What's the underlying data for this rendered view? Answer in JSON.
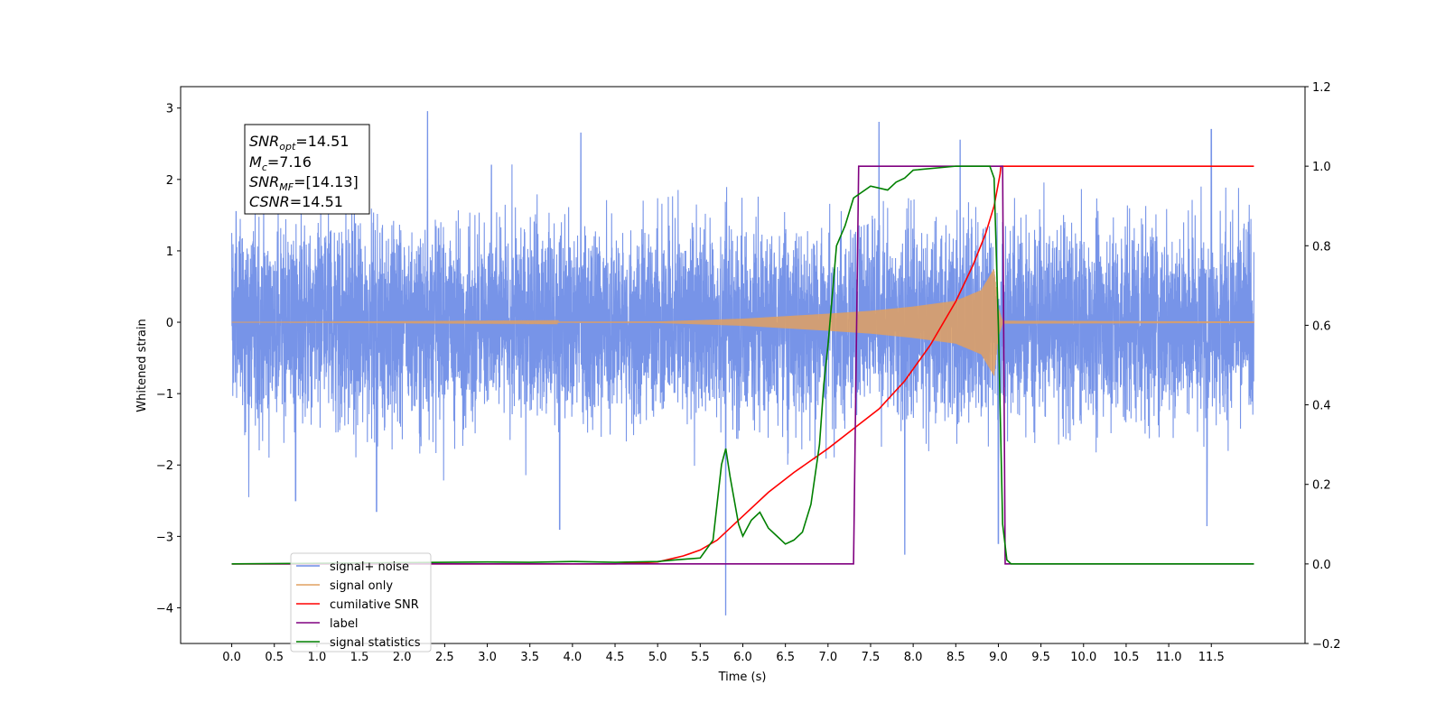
{
  "chart_data": {
    "type": "line",
    "title": "",
    "xlabel": "Time (s)",
    "ylabel": "Whitened strain",
    "xlim": [
      -0.6,
      12.6
    ],
    "ylim": [
      -4.5,
      3.3
    ],
    "y2lim": [
      -0.2,
      1.2
    ],
    "x_ticks": [
      "0.0",
      "0.5",
      "1.0",
      "1.5",
      "2.0",
      "2.5",
      "3.0",
      "3.5",
      "4.0",
      "4.5",
      "5.0",
      "5.5",
      "6.0",
      "6.5",
      "7.0",
      "7.5",
      "8.0",
      "8.5",
      "9.0",
      "9.5",
      "10.0",
      "10.5",
      "11.0",
      "11.5"
    ],
    "y_ticks": [
      "3",
      "2",
      "1",
      "0",
      "−1",
      "−2",
      "−3",
      "−4"
    ],
    "y2_ticks": [
      "1.2",
      "1.0",
      "0.8",
      "0.6",
      "0.4",
      "0.2",
      "0.0",
      "−0.2"
    ],
    "grid": false,
    "legend_position": "lower-left",
    "stats_box": {
      "line1_base": "SNR",
      "line1_sub": "opt",
      "line1_value": "=14.51",
      "line2_base": "M",
      "line2_sub": "c",
      "line2_value": "=7.16",
      "line3_base": "SNR",
      "line3_sub": "MF",
      "line3_value": "=[14.13]",
      "line4_base": "CSNR",
      "line4_value": "=14.51"
    },
    "series": [
      {
        "name": "signal+ noise",
        "color": "#6b8be6",
        "axis": "left",
        "kind": "noise_envelope",
        "typical_amplitude": 1.2,
        "peaks": [
          [
            0.05,
            1.55
          ],
          [
            0.2,
            -2.45
          ],
          [
            0.75,
            -2.5
          ],
          [
            1.7,
            -2.65
          ],
          [
            2.3,
            2.95
          ],
          [
            3.05,
            2.2
          ],
          [
            3.85,
            -2.9
          ],
          [
            4.1,
            2.65
          ],
          [
            5.8,
            -4.1
          ],
          [
            7.6,
            2.8
          ],
          [
            7.9,
            -3.25
          ],
          [
            8.55,
            2.55
          ],
          [
            9.0,
            -3.1
          ],
          [
            11.5,
            2.7
          ],
          [
            11.45,
            -2.85
          ]
        ]
      },
      {
        "name": "signal only",
        "color": "#e0a060",
        "axis": "left",
        "kind": "chirp_envelope",
        "envelope": [
          [
            0,
            0
          ],
          [
            5.0,
            0.01
          ],
          [
            6.0,
            0.05
          ],
          [
            7.0,
            0.12
          ],
          [
            7.5,
            0.16
          ],
          [
            8.0,
            0.22
          ],
          [
            8.5,
            0.3
          ],
          [
            8.8,
            0.45
          ],
          [
            8.95,
            0.75
          ],
          [
            9.0,
            0.2
          ],
          [
            9.05,
            0.02
          ],
          [
            12.0,
            0.01
          ]
        ]
      },
      {
        "name": "cumilative SNR",
        "color": "#ff0000",
        "axis": "right",
        "x": [
          0,
          4.5,
          5.0,
          5.3,
          5.5,
          5.7,
          6.0,
          6.3,
          6.6,
          7.0,
          7.3,
          7.6,
          7.9,
          8.2,
          8.5,
          8.7,
          8.85,
          8.95,
          9.02,
          9.03,
          12.0
        ],
        "y": [
          0.0,
          0.0,
          0.005,
          0.02,
          0.035,
          0.06,
          0.12,
          0.18,
          0.23,
          0.29,
          0.34,
          0.39,
          0.46,
          0.55,
          0.66,
          0.75,
          0.83,
          0.9,
          0.98,
          1.0,
          1.0
        ]
      },
      {
        "name": "label",
        "color": "#800080",
        "axis": "right",
        "x": [
          0,
          7.3,
          7.36,
          9.05,
          9.08,
          12.0
        ],
        "y": [
          0.0,
          0.0,
          1.0,
          1.0,
          0.0,
          0.0
        ]
      },
      {
        "name": "signal statistics",
        "color": "#008000",
        "axis": "right",
        "x": [
          0,
          3.0,
          3.5,
          4.0,
          4.5,
          5.0,
          5.2,
          5.5,
          5.65,
          5.75,
          5.8,
          5.85,
          5.95,
          6.0,
          6.1,
          6.2,
          6.3,
          6.4,
          6.5,
          6.6,
          6.7,
          6.8,
          6.9,
          6.95,
          7.0,
          7.1,
          7.2,
          7.3,
          7.5,
          7.7,
          7.8,
          7.9,
          8.0,
          8.5,
          8.9,
          8.95,
          9.0,
          9.05,
          9.1,
          9.15,
          12.0
        ],
        "y": [
          0.0,
          0.005,
          0.004,
          0.006,
          0.004,
          0.006,
          0.01,
          0.015,
          0.06,
          0.25,
          0.29,
          0.22,
          0.1,
          0.07,
          0.11,
          0.13,
          0.09,
          0.07,
          0.05,
          0.06,
          0.08,
          0.15,
          0.3,
          0.45,
          0.55,
          0.8,
          0.85,
          0.92,
          0.95,
          0.94,
          0.96,
          0.97,
          0.99,
          1.0,
          1.0,
          0.97,
          0.6,
          0.1,
          0.01,
          0.0,
          0.0
        ]
      }
    ]
  }
}
